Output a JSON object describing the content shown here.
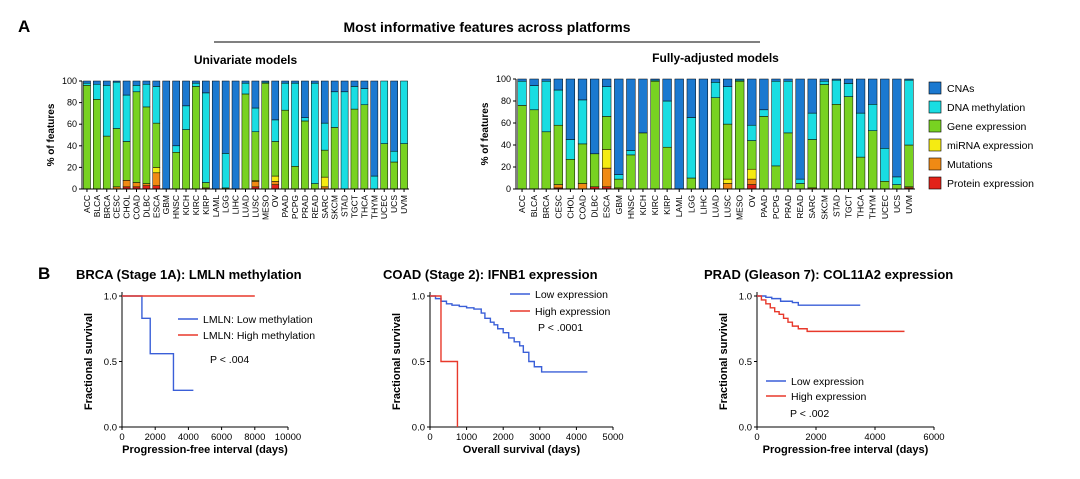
{
  "panel_labels": {
    "a": "A",
    "b": "B"
  },
  "main_title": "Most informative features across platforms",
  "stack_colors": {
    "CNAs": "#1b79d0",
    "DNA methylation": "#19dde2",
    "Gene expression": "#78d221",
    "miRNA expression": "#f5eb12",
    "Mutations": "#f08a14",
    "Protein expression": "#e2231a"
  },
  "legend_entries": [
    "CNAs",
    "DNA methylation",
    "Gene expression",
    "miRNA expression",
    "Mutations",
    "Protein expression"
  ],
  "chart_data": [
    {
      "type": "bar",
      "stacked": true,
      "title": "Univariate models",
      "xlabel": "",
      "ylabel": "% of features",
      "ylim": [
        0,
        100
      ],
      "yticks": [
        "0",
        "20",
        "40",
        "60",
        "80",
        "100"
      ],
      "categories": [
        "ACC",
        "BLCA",
        "BRCA",
        "CESC",
        "CHOL",
        "COAD",
        "DLBC",
        "ESCA",
        "GBM",
        "HNSC",
        "KICH",
        "KIRC",
        "KIRP",
        "LAML",
        "LGG",
        "LIHC",
        "LUAD",
        "LUSC",
        "MESO",
        "OV",
        "PAAD",
        "PCPG",
        "PRAD",
        "READ",
        "SARC",
        "SKCM",
        "STAD",
        "TGCT",
        "THCA",
        "THYM",
        "UCEC",
        "UCS",
        "UVM"
      ],
      "series": [
        {
          "name": "Protein expression",
          "values": [
            0,
            0,
            0,
            0,
            2,
            2,
            3,
            3,
            0,
            0,
            0,
            0,
            0,
            0,
            0,
            0,
            0,
            2,
            0,
            4,
            0,
            0,
            0,
            0,
            0,
            0,
            0,
            0,
            0,
            0,
            0,
            0,
            0
          ]
        },
        {
          "name": "Mutations",
          "values": [
            0,
            0,
            0,
            2,
            6,
            4,
            2,
            12,
            0,
            0,
            0,
            0,
            1,
            0,
            0,
            0,
            0,
            5,
            0,
            3,
            0,
            0,
            0,
            0,
            2,
            0,
            0,
            0,
            0,
            0,
            0,
            0,
            0
          ]
        },
        {
          "name": "miRNA expression",
          "values": [
            0,
            0,
            0,
            0,
            0,
            0,
            0,
            5,
            0,
            0,
            0,
            0,
            0,
            0,
            0,
            0,
            0,
            1,
            0,
            5,
            0,
            0,
            0,
            0,
            9,
            0,
            0,
            0,
            0,
            0,
            0,
            0,
            0
          ]
        },
        {
          "name": "Gene expression",
          "values": [
            96,
            83,
            49,
            54,
            36,
            84,
            71,
            41,
            0,
            34,
            55,
            95,
            5,
            0,
            1,
            0,
            88,
            45,
            98,
            32,
            73,
            21,
            63,
            5,
            25,
            57,
            0,
            74,
            78,
            0,
            42,
            25,
            42
          ]
        },
        {
          "name": "DNA methylation",
          "values": [
            2,
            14,
            47,
            43,
            43,
            6,
            21,
            34,
            0,
            6,
            22,
            3,
            83,
            0,
            32,
            0,
            10,
            22,
            1,
            20,
            25,
            77,
            3,
            93,
            25,
            33,
            90,
            21,
            15,
            12,
            58,
            10,
            58
          ]
        },
        {
          "name": "CNAs",
          "values": [
            2,
            3,
            4,
            1,
            13,
            4,
            3,
            5,
            100,
            60,
            23,
            2,
            11,
            100,
            67,
            100,
            2,
            25,
            1,
            36,
            2,
            2,
            34,
            2,
            39,
            10,
            10,
            5,
            7,
            88,
            0,
            65,
            0
          ]
        }
      ]
    },
    {
      "type": "bar",
      "stacked": true,
      "title": "Fully-adjusted models",
      "xlabel": "",
      "ylabel": "% of features",
      "ylim": [
        0,
        100
      ],
      "yticks": [
        "0",
        "20",
        "40",
        "60",
        "80",
        "100"
      ],
      "categories": [
        "ACC",
        "BLCA",
        "BRCA",
        "CESC",
        "CHOL",
        "COAD",
        "DLBC",
        "ESCA",
        "GBM",
        "HNSC",
        "KICH",
        "KIRC",
        "KIRP",
        "LAML",
        "LGG",
        "LIHC",
        "LUAD",
        "LUSC",
        "MESO",
        "OV",
        "PAAD",
        "PCPG",
        "PRAD",
        "READ",
        "SARC",
        "SKCM",
        "STAD",
        "TGCT",
        "THCA",
        "THYM",
        "UCEC",
        "UCS",
        "UVM"
      ],
      "series": [
        {
          "name": "Protein expression",
          "values": [
            0,
            0,
            0,
            1,
            0,
            0,
            2,
            2,
            0,
            0,
            0,
            0,
            0,
            0,
            0,
            0,
            0,
            0,
            0,
            4,
            0,
            0,
            0,
            0,
            0,
            0,
            0,
            0,
            0,
            0,
            0,
            0,
            1
          ]
        },
        {
          "name": "Mutations",
          "values": [
            0,
            0,
            0,
            3,
            0,
            5,
            0,
            17,
            0,
            0,
            0,
            0,
            0,
            0,
            0,
            0,
            0,
            5,
            0,
            5,
            0,
            0,
            0,
            0,
            1,
            0,
            0,
            0,
            0,
            0,
            0,
            0,
            1
          ]
        },
        {
          "name": "miRNA expression",
          "values": [
            0,
            0,
            0,
            0,
            0,
            0,
            0,
            17,
            1,
            0,
            0,
            0,
            0,
            0,
            0,
            0,
            0,
            4,
            0,
            9,
            0,
            0,
            0,
            0,
            0,
            0,
            0,
            0,
            0,
            0,
            0,
            0,
            0
          ]
        },
        {
          "name": "Gene expression",
          "values": [
            76,
            72,
            52,
            54,
            27,
            36,
            30,
            30,
            8,
            31,
            51,
            98,
            38,
            0,
            10,
            0,
            83,
            50,
            98,
            26,
            66,
            21,
            51,
            5,
            44,
            95,
            77,
            84,
            29,
            53,
            7,
            4,
            38
          ]
        },
        {
          "name": "DNA methylation",
          "values": [
            22,
            22,
            46,
            32,
            18,
            40,
            0,
            27,
            4,
            4,
            0,
            1,
            42,
            0,
            55,
            0,
            14,
            34,
            1,
            14,
            6,
            77,
            47,
            4,
            24,
            3,
            22,
            12,
            40,
            24,
            30,
            7,
            59
          ]
        },
        {
          "name": "CNAs",
          "values": [
            2,
            6,
            2,
            10,
            55,
            19,
            68,
            7,
            87,
            65,
            49,
            1,
            20,
            100,
            35,
            100,
            3,
            7,
            1,
            42,
            28,
            2,
            2,
            91,
            31,
            2,
            1,
            4,
            31,
            23,
            63,
            89,
            1
          ]
        }
      ]
    },
    {
      "type": "line",
      "step": true,
      "title": "BRCA (Stage 1A): LMLN methylation",
      "xlabel": "Progression-free interval (days)",
      "ylabel": "Fractional survival",
      "xlim": [
        0,
        10000
      ],
      "ylim": [
        0,
        1
      ],
      "xticks": [
        "0",
        "2000",
        "4000",
        "6000",
        "8000",
        "10000"
      ],
      "yticks": [
        "0.0",
        "0.5",
        "1.0"
      ],
      "annotation": "P < .004",
      "series": [
        {
          "name": "LMLN: Low methylation",
          "color": "#3a5fd8",
          "x": [
            0,
            1200,
            1700,
            3100,
            4300
          ],
          "y": [
            1.0,
            0.83,
            0.56,
            0.28,
            0.28
          ]
        },
        {
          "name": "LMLN: High methylation",
          "color": "#e8392b",
          "x": [
            0,
            8000
          ],
          "y": [
            1.0,
            1.0
          ]
        }
      ]
    },
    {
      "type": "line",
      "step": true,
      "title": "COAD (Stage 2): IFNB1 expression",
      "xlabel": "Overall survival (days)",
      "ylabel": "Fractional survival",
      "xlim": [
        0,
        5000
      ],
      "ylim": [
        0,
        1
      ],
      "xticks": [
        "0",
        "1000",
        "2000",
        "3000",
        "4000",
        "5000"
      ],
      "yticks": [
        "0.0",
        "0.5",
        "1.0"
      ],
      "annotation": "P < .0001",
      "series": [
        {
          "name": "Low expression",
          "color": "#3a5fd8",
          "x": [
            0,
            150,
            300,
            450,
            600,
            800,
            1000,
            1200,
            1400,
            1500,
            1650,
            1750,
            1850,
            2000,
            2150,
            2300,
            2450,
            2550,
            2700,
            2850,
            3050,
            4300
          ],
          "y": [
            1.0,
            0.98,
            0.96,
            0.94,
            0.93,
            0.92,
            0.91,
            0.9,
            0.87,
            0.83,
            0.8,
            0.78,
            0.75,
            0.72,
            0.68,
            0.65,
            0.62,
            0.57,
            0.5,
            0.46,
            0.42,
            0.42
          ]
        },
        {
          "name": "High expression",
          "color": "#e8392b",
          "x": [
            0,
            300,
            750,
            750
          ],
          "y": [
            1.0,
            0.5,
            0.5,
            0.0
          ]
        }
      ]
    },
    {
      "type": "line",
      "step": true,
      "title": "PRAD (Gleason 7): COL11A2 expression",
      "xlabel": "Progression-free interval (days)",
      "ylabel": "Fractional survival",
      "xlim": [
        0,
        6000
      ],
      "ylim": [
        0,
        1
      ],
      "xticks": [
        "0",
        "2000",
        "4000",
        "6000"
      ],
      "yticks": [
        "0.0",
        "0.5",
        "1.0"
      ],
      "annotation": "P < .002",
      "series": [
        {
          "name": "Low expression",
          "color": "#3a5fd8",
          "x": [
            0,
            300,
            500,
            800,
            1200,
            1400,
            3500
          ],
          "y": [
            1.0,
            0.99,
            0.98,
            0.96,
            0.95,
            0.93,
            0.93
          ]
        },
        {
          "name": "High expression",
          "color": "#e8392b",
          "x": [
            0,
            150,
            300,
            450,
            600,
            750,
            900,
            1050,
            1200,
            1400,
            1700,
            5000
          ],
          "y": [
            1.0,
            0.97,
            0.94,
            0.91,
            0.88,
            0.86,
            0.83,
            0.8,
            0.77,
            0.75,
            0.73,
            0.73
          ]
        }
      ]
    }
  ]
}
